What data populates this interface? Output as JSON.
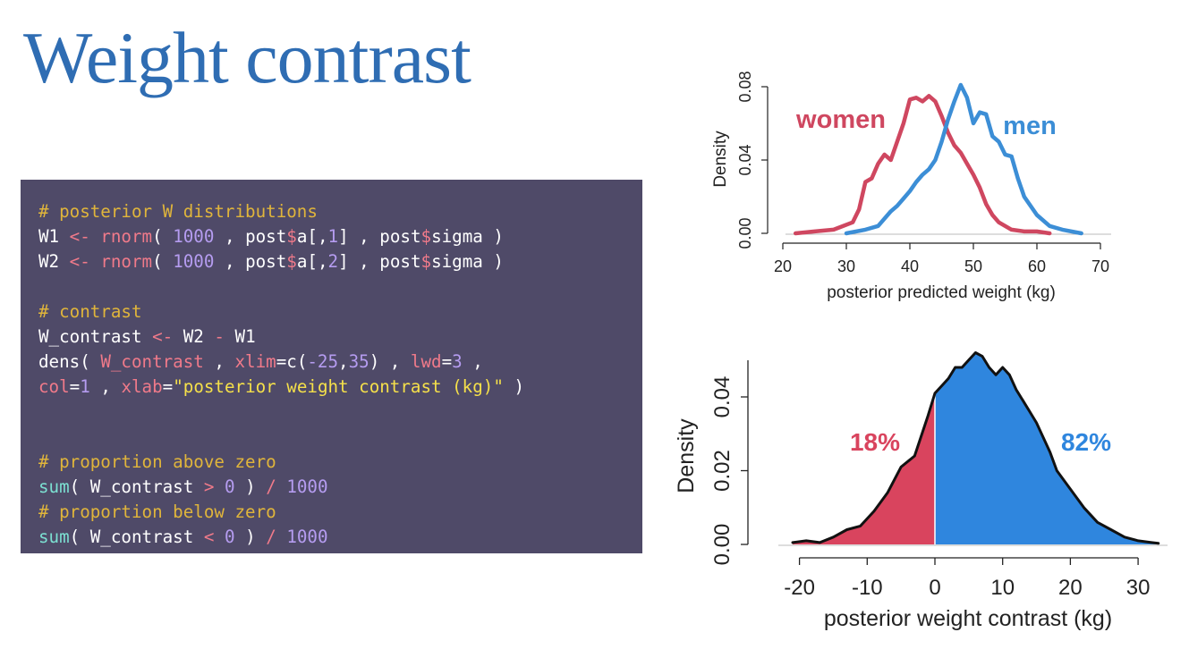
{
  "title": "Weight contrast",
  "code": {
    "lines": [
      [
        {
          "t": "# posterior W distributions",
          "k": "comment"
        }
      ],
      [
        {
          "t": "W1 ",
          "k": "plain"
        },
        {
          "t": "<-",
          "k": "op"
        },
        {
          "t": " ",
          "k": "plain"
        },
        {
          "t": "rnorm",
          "k": "op"
        },
        {
          "t": "( ",
          "k": "plain"
        },
        {
          "t": "1000",
          "k": "num"
        },
        {
          "t": " , post",
          "k": "plain"
        },
        {
          "t": "$",
          "k": "dollar"
        },
        {
          "t": "a[,",
          "k": "plain"
        },
        {
          "t": "1",
          "k": "num"
        },
        {
          "t": "] , post",
          "k": "plain"
        },
        {
          "t": "$",
          "k": "dollar"
        },
        {
          "t": "sigma )",
          "k": "plain"
        }
      ],
      [
        {
          "t": "W2 ",
          "k": "plain"
        },
        {
          "t": "<-",
          "k": "op"
        },
        {
          "t": " ",
          "k": "plain"
        },
        {
          "t": "rnorm",
          "k": "op"
        },
        {
          "t": "( ",
          "k": "plain"
        },
        {
          "t": "1000",
          "k": "num"
        },
        {
          "t": " , post",
          "k": "plain"
        },
        {
          "t": "$",
          "k": "dollar"
        },
        {
          "t": "a[,",
          "k": "plain"
        },
        {
          "t": "2",
          "k": "num"
        },
        {
          "t": "] , post",
          "k": "plain"
        },
        {
          "t": "$",
          "k": "dollar"
        },
        {
          "t": "sigma )",
          "k": "plain"
        }
      ],
      [],
      [
        {
          "t": "# contrast",
          "k": "comment"
        }
      ],
      [
        {
          "t": "W_contrast ",
          "k": "plain"
        },
        {
          "t": "<-",
          "k": "op"
        },
        {
          "t": " W2 ",
          "k": "plain"
        },
        {
          "t": "-",
          "k": "op"
        },
        {
          "t": " W1",
          "k": "plain"
        }
      ],
      [
        {
          "t": "dens( ",
          "k": "plain"
        },
        {
          "t": "W_contrast",
          "k": "arg"
        },
        {
          "t": " , ",
          "k": "plain"
        },
        {
          "t": "xlim",
          "k": "arg"
        },
        {
          "t": "=c(",
          "k": "plain"
        },
        {
          "t": "-25",
          "k": "num"
        },
        {
          "t": ",",
          "k": "plain"
        },
        {
          "t": "35",
          "k": "num"
        },
        {
          "t": ") , ",
          "k": "plain"
        },
        {
          "t": "lwd",
          "k": "arg"
        },
        {
          "t": "=",
          "k": "plain"
        },
        {
          "t": "3",
          "k": "num"
        },
        {
          "t": " ,",
          "k": "plain"
        }
      ],
      [
        {
          "t": "col",
          "k": "arg"
        },
        {
          "t": "=",
          "k": "plain"
        },
        {
          "t": "1",
          "k": "num"
        },
        {
          "t": " , ",
          "k": "plain"
        },
        {
          "t": "xlab",
          "k": "arg"
        },
        {
          "t": "=",
          "k": "plain"
        },
        {
          "t": "\"posterior weight contrast (kg)\"",
          "k": "str"
        },
        {
          "t": " )",
          "k": "plain"
        }
      ],
      [],
      [],
      [
        {
          "t": "# proportion above zero",
          "k": "comment"
        }
      ],
      [
        {
          "t": "sum",
          "k": "func"
        },
        {
          "t": "( W_contrast ",
          "k": "plain"
        },
        {
          "t": ">",
          "k": "op"
        },
        {
          "t": " ",
          "k": "plain"
        },
        {
          "t": "0",
          "k": "num"
        },
        {
          "t": " ) ",
          "k": "plain"
        },
        {
          "t": "/",
          "k": "op"
        },
        {
          "t": " ",
          "k": "plain"
        },
        {
          "t": "1000",
          "k": "num"
        }
      ],
      [
        {
          "t": "# proportion below zero",
          "k": "comment"
        }
      ],
      [
        {
          "t": "sum",
          "k": "func"
        },
        {
          "t": "( W_contrast ",
          "k": "plain"
        },
        {
          "t": "<",
          "k": "op"
        },
        {
          "t": " ",
          "k": "plain"
        },
        {
          "t": "0",
          "k": "num"
        },
        {
          "t": " ) ",
          "k": "plain"
        },
        {
          "t": "/",
          "k": "op"
        },
        {
          "t": " ",
          "k": "plain"
        },
        {
          "t": "1000",
          "k": "num"
        }
      ]
    ]
  },
  "colors": {
    "title": "#2f6db3",
    "women": "#cf4760",
    "men": "#3c8ed6",
    "neg_fill": "#d9445e",
    "pos_fill": "#2f86de",
    "outline": "#111111"
  },
  "chart_data": [
    {
      "type": "line",
      "xlabel": "posterior predicted weight (kg)",
      "ylabel": "Density",
      "xlim": [
        20,
        70
      ],
      "ylim": [
        0,
        0.08
      ],
      "xticks": [
        "20",
        "30",
        "40",
        "50",
        "60",
        "70"
      ],
      "yticks": [
        "0.00",
        "0.04",
        "0.08"
      ],
      "grid": false,
      "annotations": [
        {
          "text": "women",
          "series": "women"
        },
        {
          "text": "men",
          "series": "men"
        }
      ],
      "series": [
        {
          "name": "women",
          "x": [
            22,
            25,
            28,
            31,
            32,
            33,
            34,
            35,
            36,
            37,
            38,
            39,
            40,
            41,
            42,
            43,
            44,
            45,
            46,
            47,
            48,
            49,
            50,
            51,
            52,
            53,
            54,
            55,
            56,
            58,
            60,
            62
          ],
          "y": [
            0.0,
            0.001,
            0.002,
            0.006,
            0.013,
            0.028,
            0.03,
            0.038,
            0.043,
            0.04,
            0.05,
            0.06,
            0.073,
            0.074,
            0.072,
            0.075,
            0.072,
            0.064,
            0.055,
            0.048,
            0.044,
            0.038,
            0.032,
            0.025,
            0.016,
            0.01,
            0.006,
            0.004,
            0.002,
            0.001,
            0.001,
            0.0
          ]
        },
        {
          "name": "men",
          "x": [
            30,
            33,
            35,
            37,
            38,
            39,
            40,
            41,
            42,
            43,
            44,
            45,
            46,
            47,
            48,
            49,
            50,
            51,
            52,
            53,
            54,
            55,
            56,
            57,
            58,
            60,
            62,
            64,
            67
          ],
          "y": [
            0.0,
            0.002,
            0.004,
            0.012,
            0.015,
            0.019,
            0.023,
            0.028,
            0.032,
            0.035,
            0.04,
            0.05,
            0.062,
            0.072,
            0.081,
            0.074,
            0.06,
            0.066,
            0.065,
            0.053,
            0.05,
            0.043,
            0.042,
            0.03,
            0.02,
            0.01,
            0.004,
            0.002,
            0.0
          ]
        }
      ]
    },
    {
      "type": "area",
      "xlabel": "posterior weight contrast (kg)",
      "ylabel": "Density",
      "xlim": [
        -22,
        34
      ],
      "ylim": [
        0,
        0.05
      ],
      "xticks": [
        "-20",
        "-10",
        "0",
        "10",
        "20",
        "30"
      ],
      "yticks": [
        "0.00",
        "0.02",
        "0.04"
      ],
      "grid": false,
      "shade_split_x": 0,
      "annotations": [
        {
          "text": "18%",
          "side": "negative"
        },
        {
          "text": "82%",
          "side": "positive"
        }
      ],
      "series": [
        {
          "name": "",
          "x": [
            -21,
            -19,
            -17,
            -15,
            -13,
            -11,
            -9,
            -7,
            -5,
            -3,
            -1,
            0,
            1,
            2,
            3,
            4,
            5,
            6,
            7,
            8,
            9,
            10,
            11,
            12,
            13,
            14,
            15,
            16,
            17,
            18,
            20,
            22,
            24,
            26,
            28,
            30,
            32,
            33
          ],
          "y": [
            0.0005,
            0.001,
            0.0005,
            0.002,
            0.004,
            0.005,
            0.009,
            0.014,
            0.021,
            0.024,
            0.035,
            0.041,
            0.043,
            0.045,
            0.048,
            0.048,
            0.05,
            0.052,
            0.051,
            0.048,
            0.046,
            0.048,
            0.046,
            0.042,
            0.039,
            0.036,
            0.033,
            0.029,
            0.025,
            0.02,
            0.015,
            0.01,
            0.006,
            0.004,
            0.002,
            0.001,
            0.0005,
            0.0003
          ]
        }
      ]
    }
  ]
}
